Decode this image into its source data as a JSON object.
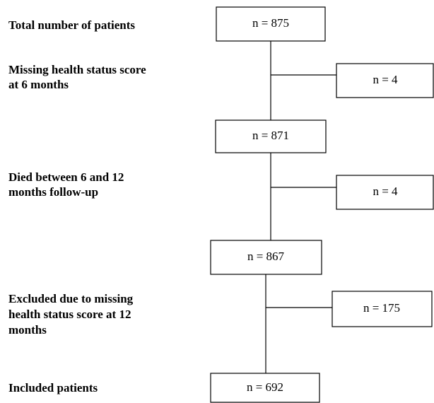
{
  "steps": [
    {
      "label": [
        "Total number of patients"
      ],
      "count": "n = 875"
    },
    {
      "label": [
        "Missing health status score",
        "at 6 months"
      ],
      "count": "n = 4"
    },
    {
      "count": "n = 871"
    },
    {
      "label": [
        "Died between 6 and 12",
        "months follow-up"
      ],
      "count": "n = 4"
    },
    {
      "count": "n = 867"
    },
    {
      "label": [
        "Excluded due to missing",
        "health status score at 12",
        "months"
      ],
      "count": "n = 175"
    },
    {
      "label": [
        "Included patients"
      ],
      "count": "n = 692"
    }
  ]
}
